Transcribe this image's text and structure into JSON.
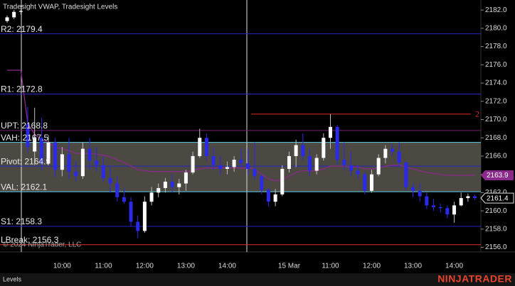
{
  "chart_data": {
    "type": "candlestick",
    "title": "Tradesight VWAP, Tradesight Levels",
    "copyright": "© 2024 NinjaTrader, LLC",
    "tab": "Levels",
    "brand": "NINJATRADER",
    "categories": [
      null,
      null,
      null,
      null,
      null,
      null,
      null,
      null,
      "10:00",
      null,
      null,
      null,
      null,
      null,
      "11:00",
      null,
      null,
      null,
      null,
      null,
      "12:00",
      null,
      null,
      null,
      null,
      null,
      "13:00",
      null,
      null,
      null,
      null,
      null,
      "14:00",
      null,
      null,
      null,
      null,
      null,
      null,
      null,
      null,
      "15 Mar",
      null,
      null,
      null,
      null,
      null,
      "11:00",
      null,
      null,
      null,
      null,
      null,
      "12:00",
      null,
      null,
      null,
      null,
      null,
      "13:00",
      null,
      null,
      null,
      null,
      null,
      "14:00",
      null,
      null,
      null
    ],
    "open": [
      2180.8,
      2181.2,
      2181.8,
      2169.5,
      2166.5,
      2168.0,
      2165.2,
      2167.5,
      2164.5,
      2166.2,
      2164.3,
      2163.8,
      2166.8,
      2165.5,
      2165.0,
      2163.6,
      2163.0,
      2161.5,
      2161.0,
      2158.8,
      2157.8,
      2161.0,
      2162.0,
      2162.5,
      2163.2,
      2162.6,
      2163.0,
      2164.2,
      2166.0,
      2168.0,
      2166.0,
      2165.0,
      2164.6,
      2164.8,
      2165.6,
      2165.2,
      2164.6,
      2163.8,
      2162.3,
      2161.0,
      2161.8,
      2164.6,
      2166.0,
      2167.2,
      2166.0,
      2164.4,
      2165.8,
      2168.0,
      2169.2,
      2165.6,
      2165.0,
      2164.4,
      2164.0,
      2162.2,
      2164.0,
      2165.8,
      2166.8,
      2166.5,
      2165.3,
      2162.6,
      2162.2,
      2161.6,
      2160.6,
      2160.4,
      2160.3,
      2159.6,
      2160.6,
      2161.4,
      2161.6
    ],
    "high": [
      2181.4,
      2182.0,
      2182.1,
      2171.4,
      2171.3,
      2170.2,
      2168.3,
      2168.0,
      2167.0,
      2168.0,
      2165.5,
      2167.5,
      2168.0,
      2167.0,
      2166.0,
      2164.8,
      2163.8,
      2162.5,
      2161.5,
      2159.5,
      2161.6,
      2162.6,
      2163.0,
      2163.6,
      2164.0,
      2163.5,
      2164.5,
      2166.5,
      2169.0,
      2168.5,
      2167.0,
      2166.0,
      2165.4,
      2166.0,
      2166.8,
      2166.8,
      2167.5,
      2164.0,
      2162.5,
      2162.4,
      2165.0,
      2166.5,
      2167.8,
      2168.5,
      2166.8,
      2166.2,
      2168.5,
      2170.6,
      2169.4,
      2167.5,
      2166.5,
      2165.0,
      2164.3,
      2164.5,
      2166.2,
      2167.2,
      2167.3,
      2167.5,
      2165.4,
      2163.0,
      2163.0,
      2162.0,
      2161.3,
      2160.8,
      2160.6,
      2161.0,
      2162.0,
      2161.9,
      2161.8
    ],
    "low": [
      2180.6,
      2181.0,
      2181.5,
      2166.4,
      2165.0,
      2164.4,
      2165.0,
      2163.7,
      2163.8,
      2163.5,
      2163.2,
      2163.5,
      2164.5,
      2164.3,
      2163.2,
      2162.0,
      2161.0,
      2160.8,
      2158.3,
      2157.0,
      2157.6,
      2160.6,
      2161.5,
      2162.0,
      2162.0,
      2161.8,
      2162.2,
      2164.0,
      2165.8,
      2165.5,
      2164.5,
      2164.0,
      2164.0,
      2164.3,
      2164.8,
      2164.0,
      2163.4,
      2161.8,
      2160.5,
      2160.5,
      2161.6,
      2164.2,
      2164.8,
      2165.5,
      2163.8,
      2164.0,
      2165.5,
      2166.8,
      2165.0,
      2164.5,
      2163.8,
      2163.5,
      2161.8,
      2162.0,
      2163.8,
      2165.2,
      2166.0,
      2164.8,
      2162.2,
      2161.5,
      2161.0,
      2160.2,
      2160.0,
      2159.8,
      2159.2,
      2158.7,
      2160.5,
      2161.0,
      2161.2
    ],
    "close": [
      2181.2,
      2181.8,
      2181.9,
      2167.0,
      2168.0,
      2165.2,
      2167.5,
      2164.5,
      2166.2,
      2164.3,
      2163.8,
      2166.8,
      2165.5,
      2165.0,
      2163.6,
      2163.0,
      2161.5,
      2161.0,
      2158.8,
      2157.8,
      2161.0,
      2162.0,
      2162.5,
      2163.2,
      2162.6,
      2163.0,
      2164.2,
      2166.0,
      2168.0,
      2166.0,
      2165.0,
      2164.6,
      2164.8,
      2165.6,
      2165.2,
      2164.6,
      2163.8,
      2162.3,
      2161.0,
      2161.8,
      2164.6,
      2166.0,
      2167.2,
      2166.0,
      2164.4,
      2165.8,
      2168.0,
      2169.2,
      2165.6,
      2165.0,
      2164.4,
      2164.0,
      2162.2,
      2164.0,
      2165.8,
      2166.8,
      2166.5,
      2165.3,
      2162.6,
      2162.2,
      2161.6,
      2160.6,
      2160.4,
      2160.3,
      2159.6,
      2160.6,
      2161.4,
      2161.6,
      2161.4
    ],
    "up_color": "#ffffff",
    "down_color": "#2a2ae8",
    "wick_color": "#bdbdbd",
    "vwap": {
      "color": "#8a2a8a",
      "values": [
        2175.4,
        2175.4,
        2175.4,
        2169.6,
        2168.4,
        2167.8,
        2167.5,
        2167.0,
        2166.8,
        2166.6,
        2166.3,
        2166.3,
        2166.3,
        2166.2,
        2166.1,
        2165.9,
        2165.6,
        2165.3,
        2164.9,
        2164.5,
        2164.4,
        2164.3,
        2164.3,
        2164.3,
        2164.3,
        2164.3,
        2164.3,
        2164.4,
        2164.6,
        2164.7,
        2164.7,
        2164.7,
        2164.7,
        2164.7,
        2164.7,
        2164.7,
        2164.6,
        2164.0,
        2163.5,
        2163.3,
        2163.4,
        2163.8,
        2164.2,
        2164.4,
        2164.4,
        2164.4,
        2164.6,
        2164.9,
        2164.9,
        2164.9,
        2164.8,
        2164.8,
        2164.6,
        2164.6,
        2164.7,
        2164.9,
        2165.0,
        2165.0,
        2164.8,
        2164.6,
        2164.4,
        2164.2,
        2164.1,
        2164.0,
        2163.9,
        2163.9,
        2163.9,
        2163.9,
        2163.9
      ],
      "last": 2163.9
    },
    "last_price": 2161.4,
    "levels": [
      {
        "label": "R2: 2179.4",
        "value": 2179.4,
        "color": "#2525c8"
      },
      {
        "label": "R1: 2172.8",
        "value": 2172.8,
        "color": "#2525c8"
      },
      {
        "label": "UPT: 2168.8",
        "value": 2168.8,
        "color": "#7a1f7a"
      },
      {
        "label": "VAH: 2167.5",
        "value": 2167.5,
        "color": "#62d2e2"
      },
      {
        "label": "Pivot: 2164.9",
        "value": 2164.9,
        "color": "#2525c8"
      },
      {
        "label": "VAL: 2162.1",
        "value": 2162.1,
        "color": "#62d2e2"
      },
      {
        "label": "S1: 2158.3",
        "value": 2158.3,
        "color": "#2525c8"
      },
      {
        "label": "LBreak: 2156.3",
        "value": 2156.3,
        "color": "#e03030"
      }
    ],
    "value_area_color": "#58564c",
    "drawing": {
      "label": "2",
      "value": 2170.6,
      "color": "#e02828"
    },
    "ylim": [
      2155.5,
      2183.1
    ],
    "yticks": [
      {
        "value": 2156,
        "label": "2156.0"
      },
      {
        "value": 2158,
        "label": "2158.0"
      },
      {
        "value": 2160,
        "label": "2160.0"
      },
      {
        "value": 2162,
        "label": "2162.0"
      },
      {
        "value": 2164,
        "label": "2164.0"
      },
      {
        "value": 2166,
        "label": "2166.0"
      },
      {
        "value": 2168,
        "label": "2168.0"
      },
      {
        "value": 2170,
        "label": "2170.0"
      },
      {
        "value": 2172,
        "label": "2172.0"
      },
      {
        "value": 2174,
        "label": "2174.0"
      },
      {
        "value": 2176,
        "label": "2176.0"
      },
      {
        "value": 2178,
        "label": "2178.0"
      },
      {
        "value": 2180,
        "label": "2180.0"
      },
      {
        "value": 2182,
        "label": "2182.0"
      }
    ]
  }
}
